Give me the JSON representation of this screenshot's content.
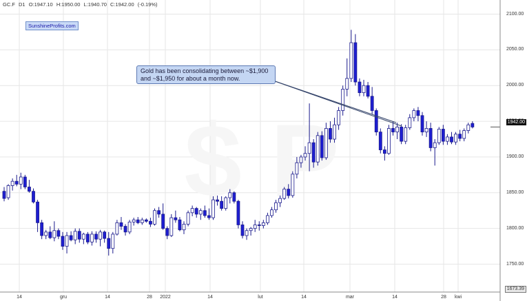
{
  "header": {
    "symbol": "GC.F",
    "timeframe": "D1",
    "open": "O:1947.10",
    "high": "H:1950.00",
    "low": "L:1940.70",
    "close": "C:1942.00",
    "change": "(-0.19%)"
  },
  "brand": "SunshineProfits.com",
  "annotation": "Gold has been consolidating between ~$1,900 and ~$1,950 for about a month now.",
  "price_tag": "1942.00",
  "price_min": "1673.39",
  "colors": {
    "up_fill": "#ffffff",
    "down_fill": "#1e1ed2",
    "outline": "#1a1a8c",
    "grid": "#e6e6e6"
  },
  "chart_data": {
    "type": "candlestick",
    "y_ticks": [
      "1750.00",
      "1800.00",
      "1850.00",
      "1900.00",
      "1950.00",
      "2000.00",
      "2050.00",
      "2100.00"
    ],
    "ylim": [
      1730,
      2110
    ],
    "x_ticks": [
      "14",
      "gru",
      "14",
      "28",
      "2022",
      "14",
      "lut",
      "14",
      "mar",
      "14",
      "28",
      "kwi"
    ],
    "last_close": 1942.0,
    "candles": [
      [
        1852,
        1858,
        1838,
        1842
      ],
      [
        1843,
        1862,
        1840,
        1860
      ],
      [
        1860,
        1870,
        1853,
        1866
      ],
      [
        1866,
        1875,
        1859,
        1862
      ],
      [
        1862,
        1878,
        1855,
        1872
      ],
      [
        1872,
        1875,
        1855,
        1858
      ],
      [
        1858,
        1868,
        1850,
        1852
      ],
      [
        1852,
        1856,
        1835,
        1837
      ],
      [
        1837,
        1840,
        1795,
        1808
      ],
      [
        1808,
        1812,
        1785,
        1790
      ],
      [
        1790,
        1798,
        1785,
        1795
      ],
      [
        1795,
        1803,
        1785,
        1787
      ],
      [
        1787,
        1810,
        1782,
        1797
      ],
      [
        1797,
        1800,
        1785,
        1789
      ],
      [
        1789,
        1795,
        1770,
        1775
      ],
      [
        1775,
        1795,
        1765,
        1790
      ],
      [
        1790,
        1796,
        1782,
        1784
      ],
      [
        1784,
        1800,
        1778,
        1796
      ],
      [
        1796,
        1800,
        1780,
        1785
      ],
      [
        1785,
        1794,
        1778,
        1792
      ],
      [
        1792,
        1795,
        1778,
        1781
      ],
      [
        1781,
        1796,
        1776,
        1792
      ],
      [
        1792,
        1796,
        1780,
        1785
      ],
      [
        1785,
        1798,
        1775,
        1795
      ],
      [
        1795,
        1797,
        1780,
        1786
      ],
      [
        1786,
        1795,
        1762,
        1772
      ],
      [
        1772,
        1795,
        1765,
        1792
      ],
      [
        1792,
        1812,
        1790,
        1808
      ],
      [
        1808,
        1816,
        1798,
        1803
      ],
      [
        1803,
        1806,
        1790,
        1795
      ],
      [
        1795,
        1812,
        1792,
        1809
      ],
      [
        1809,
        1815,
        1804,
        1812
      ],
      [
        1812,
        1816,
        1806,
        1808
      ],
      [
        1808,
        1815,
        1805,
        1812
      ],
      [
        1812,
        1814,
        1808,
        1810
      ],
      [
        1810,
        1815,
        1802,
        1806
      ],
      [
        1806,
        1828,
        1804,
        1825
      ],
      [
        1825,
        1830,
        1815,
        1820
      ],
      [
        1820,
        1835,
        1798,
        1800
      ],
      [
        1800,
        1803,
        1785,
        1790
      ],
      [
        1790,
        1820,
        1788,
        1815
      ],
      [
        1815,
        1825,
        1808,
        1812
      ],
      [
        1812,
        1816,
        1796,
        1798
      ],
      [
        1798,
        1810,
        1792,
        1806
      ],
      [
        1806,
        1825,
        1803,
        1822
      ],
      [
        1822,
        1832,
        1817,
        1828
      ],
      [
        1828,
        1830,
        1815,
        1820
      ],
      [
        1820,
        1828,
        1812,
        1825
      ],
      [
        1825,
        1832,
        1815,
        1818
      ],
      [
        1818,
        1828,
        1812,
        1815
      ],
      [
        1815,
        1845,
        1812,
        1840
      ],
      [
        1840,
        1846,
        1832,
        1838
      ],
      [
        1838,
        1845,
        1825,
        1828
      ],
      [
        1828,
        1845,
        1825,
        1843
      ],
      [
        1843,
        1855,
        1835,
        1850
      ],
      [
        1850,
        1852,
        1835,
        1838
      ],
      [
        1838,
        1840,
        1800,
        1805
      ],
      [
        1805,
        1810,
        1786,
        1790
      ],
      [
        1790,
        1800,
        1784,
        1797
      ],
      [
        1797,
        1802,
        1790,
        1800
      ],
      [
        1800,
        1812,
        1795,
        1805
      ],
      [
        1805,
        1810,
        1797,
        1804
      ],
      [
        1804,
        1812,
        1800,
        1808
      ],
      [
        1808,
        1822,
        1805,
        1818
      ],
      [
        1818,
        1830,
        1815,
        1826
      ],
      [
        1826,
        1840,
        1822,
        1836
      ],
      [
        1836,
        1846,
        1830,
        1842
      ],
      [
        1842,
        1858,
        1840,
        1855
      ],
      [
        1855,
        1862,
        1842,
        1846
      ],
      [
        1846,
        1880,
        1843,
        1876
      ],
      [
        1876,
        1900,
        1870,
        1892
      ],
      [
        1892,
        1903,
        1885,
        1900
      ],
      [
        1900,
        1915,
        1895,
        1905
      ],
      [
        1905,
        1975,
        1880,
        1920
      ],
      [
        1920,
        1925,
        1885,
        1893
      ],
      [
        1893,
        1935,
        1888,
        1930
      ],
      [
        1930,
        1936,
        1895,
        1899
      ],
      [
        1899,
        1948,
        1896,
        1940
      ],
      [
        1940,
        1950,
        1920,
        1925
      ],
      [
        1925,
        1955,
        1920,
        1945
      ],
      [
        1945,
        1970,
        1938,
        1965
      ],
      [
        1965,
        2000,
        1958,
        1995
      ],
      [
        1995,
        2038,
        1985,
        2010
      ],
      [
        2010,
        2078,
        2005,
        2060
      ],
      [
        2060,
        2072,
        2000,
        2005
      ],
      [
        2005,
        2010,
        1985,
        1990
      ],
      [
        1990,
        2008,
        1985,
        2000
      ],
      [
        2000,
        2005,
        1982,
        1985
      ],
      [
        1985,
        1998,
        1960,
        1965
      ],
      [
        1965,
        1968,
        1930,
        1935
      ],
      [
        1935,
        1940,
        1905,
        1910
      ],
      [
        1910,
        1915,
        1895,
        1905
      ],
      [
        1905,
        1945,
        1903,
        1940
      ],
      [
        1940,
        1950,
        1930,
        1935
      ],
      [
        1935,
        1948,
        1925,
        1942
      ],
      [
        1942,
        1946,
        1918,
        1922
      ],
      [
        1922,
        1945,
        1918,
        1941
      ],
      [
        1941,
        1960,
        1938,
        1955
      ],
      [
        1955,
        1968,
        1950,
        1965
      ],
      [
        1965,
        1970,
        1950,
        1958
      ],
      [
        1958,
        1963,
        1930,
        1935
      ],
      [
        1935,
        1950,
        1928,
        1940
      ],
      [
        1940,
        1948,
        1908,
        1913
      ],
      [
        1913,
        1925,
        1888,
        1920
      ],
      [
        1920,
        1942,
        1917,
        1939
      ],
      [
        1939,
        1945,
        1917,
        1922
      ],
      [
        1922,
        1932,
        1917,
        1928
      ],
      [
        1928,
        1935,
        1918,
        1921
      ],
      [
        1921,
        1935,
        1917,
        1932
      ],
      [
        1932,
        1938,
        1922,
        1926
      ],
      [
        1926,
        1940,
        1922,
        1937
      ],
      [
        1937,
        1948,
        1933,
        1945
      ],
      [
        1947,
        1950,
        1940,
        1942
      ]
    ]
  }
}
